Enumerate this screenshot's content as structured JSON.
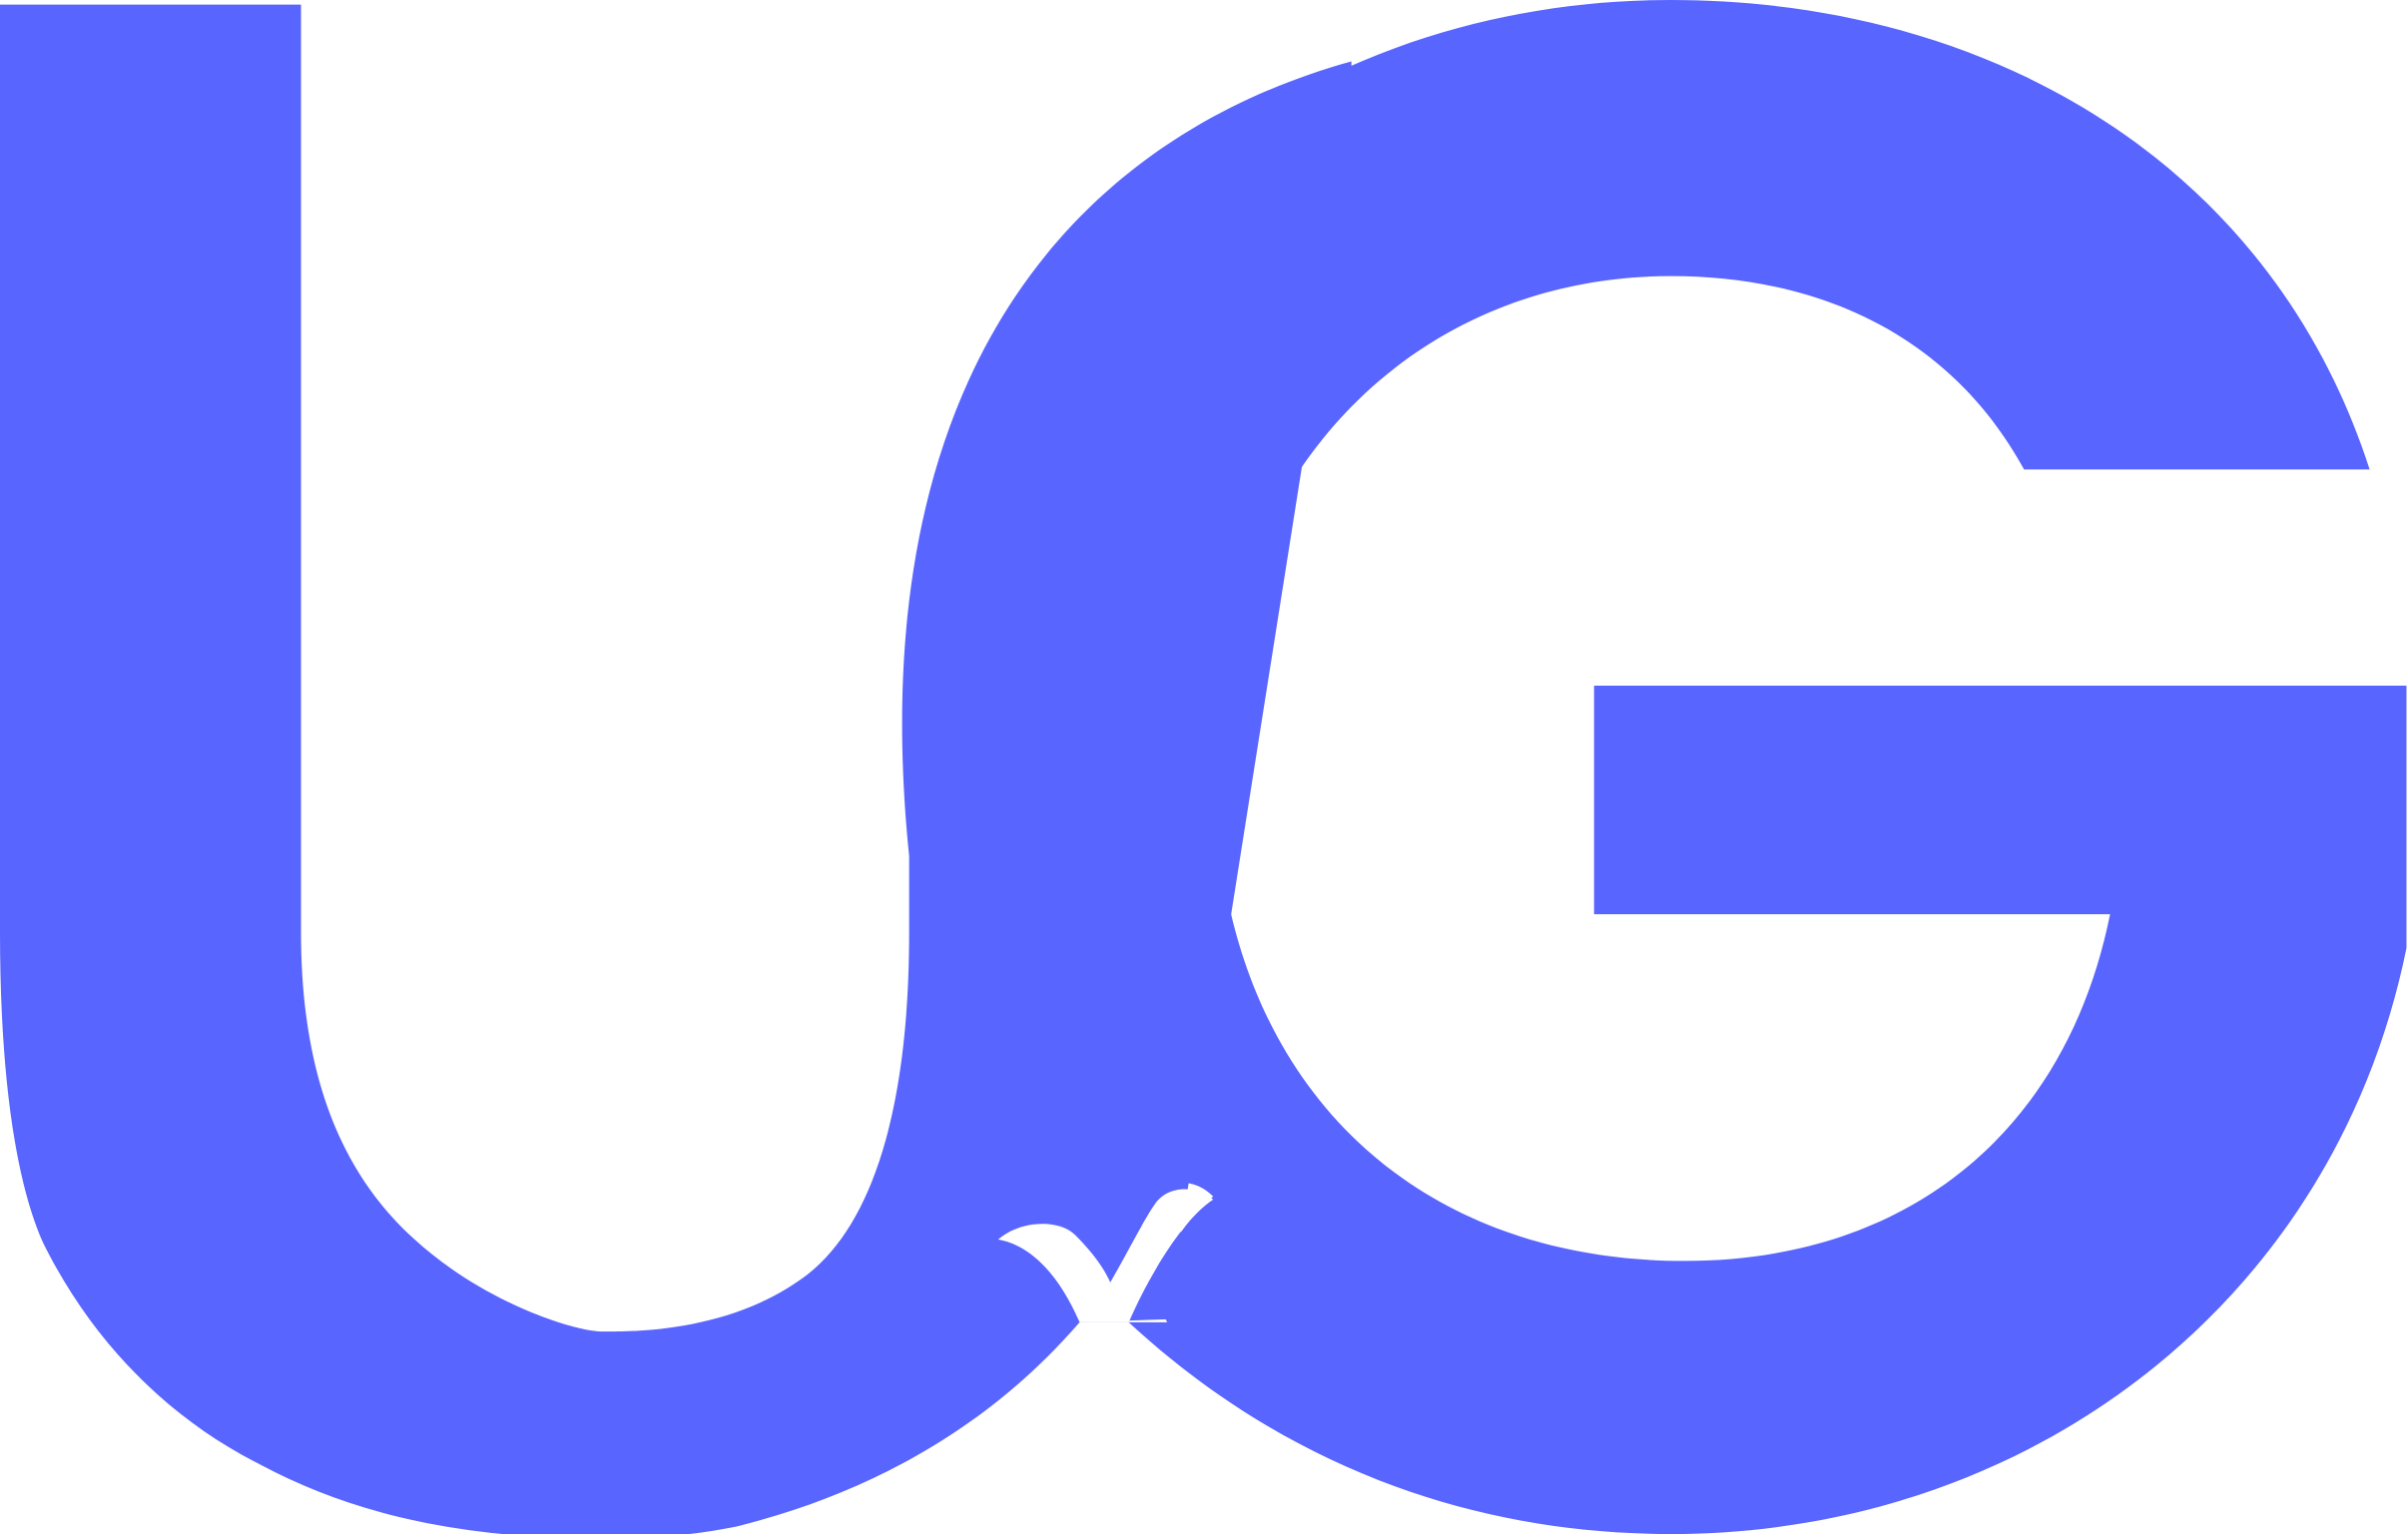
{
  "logo": {
    "name": "UG monogram",
    "letters": "UG",
    "color": "#5965FF",
    "background": "#FFFFFF",
    "accent_mark": "checkmark-tick"
  }
}
